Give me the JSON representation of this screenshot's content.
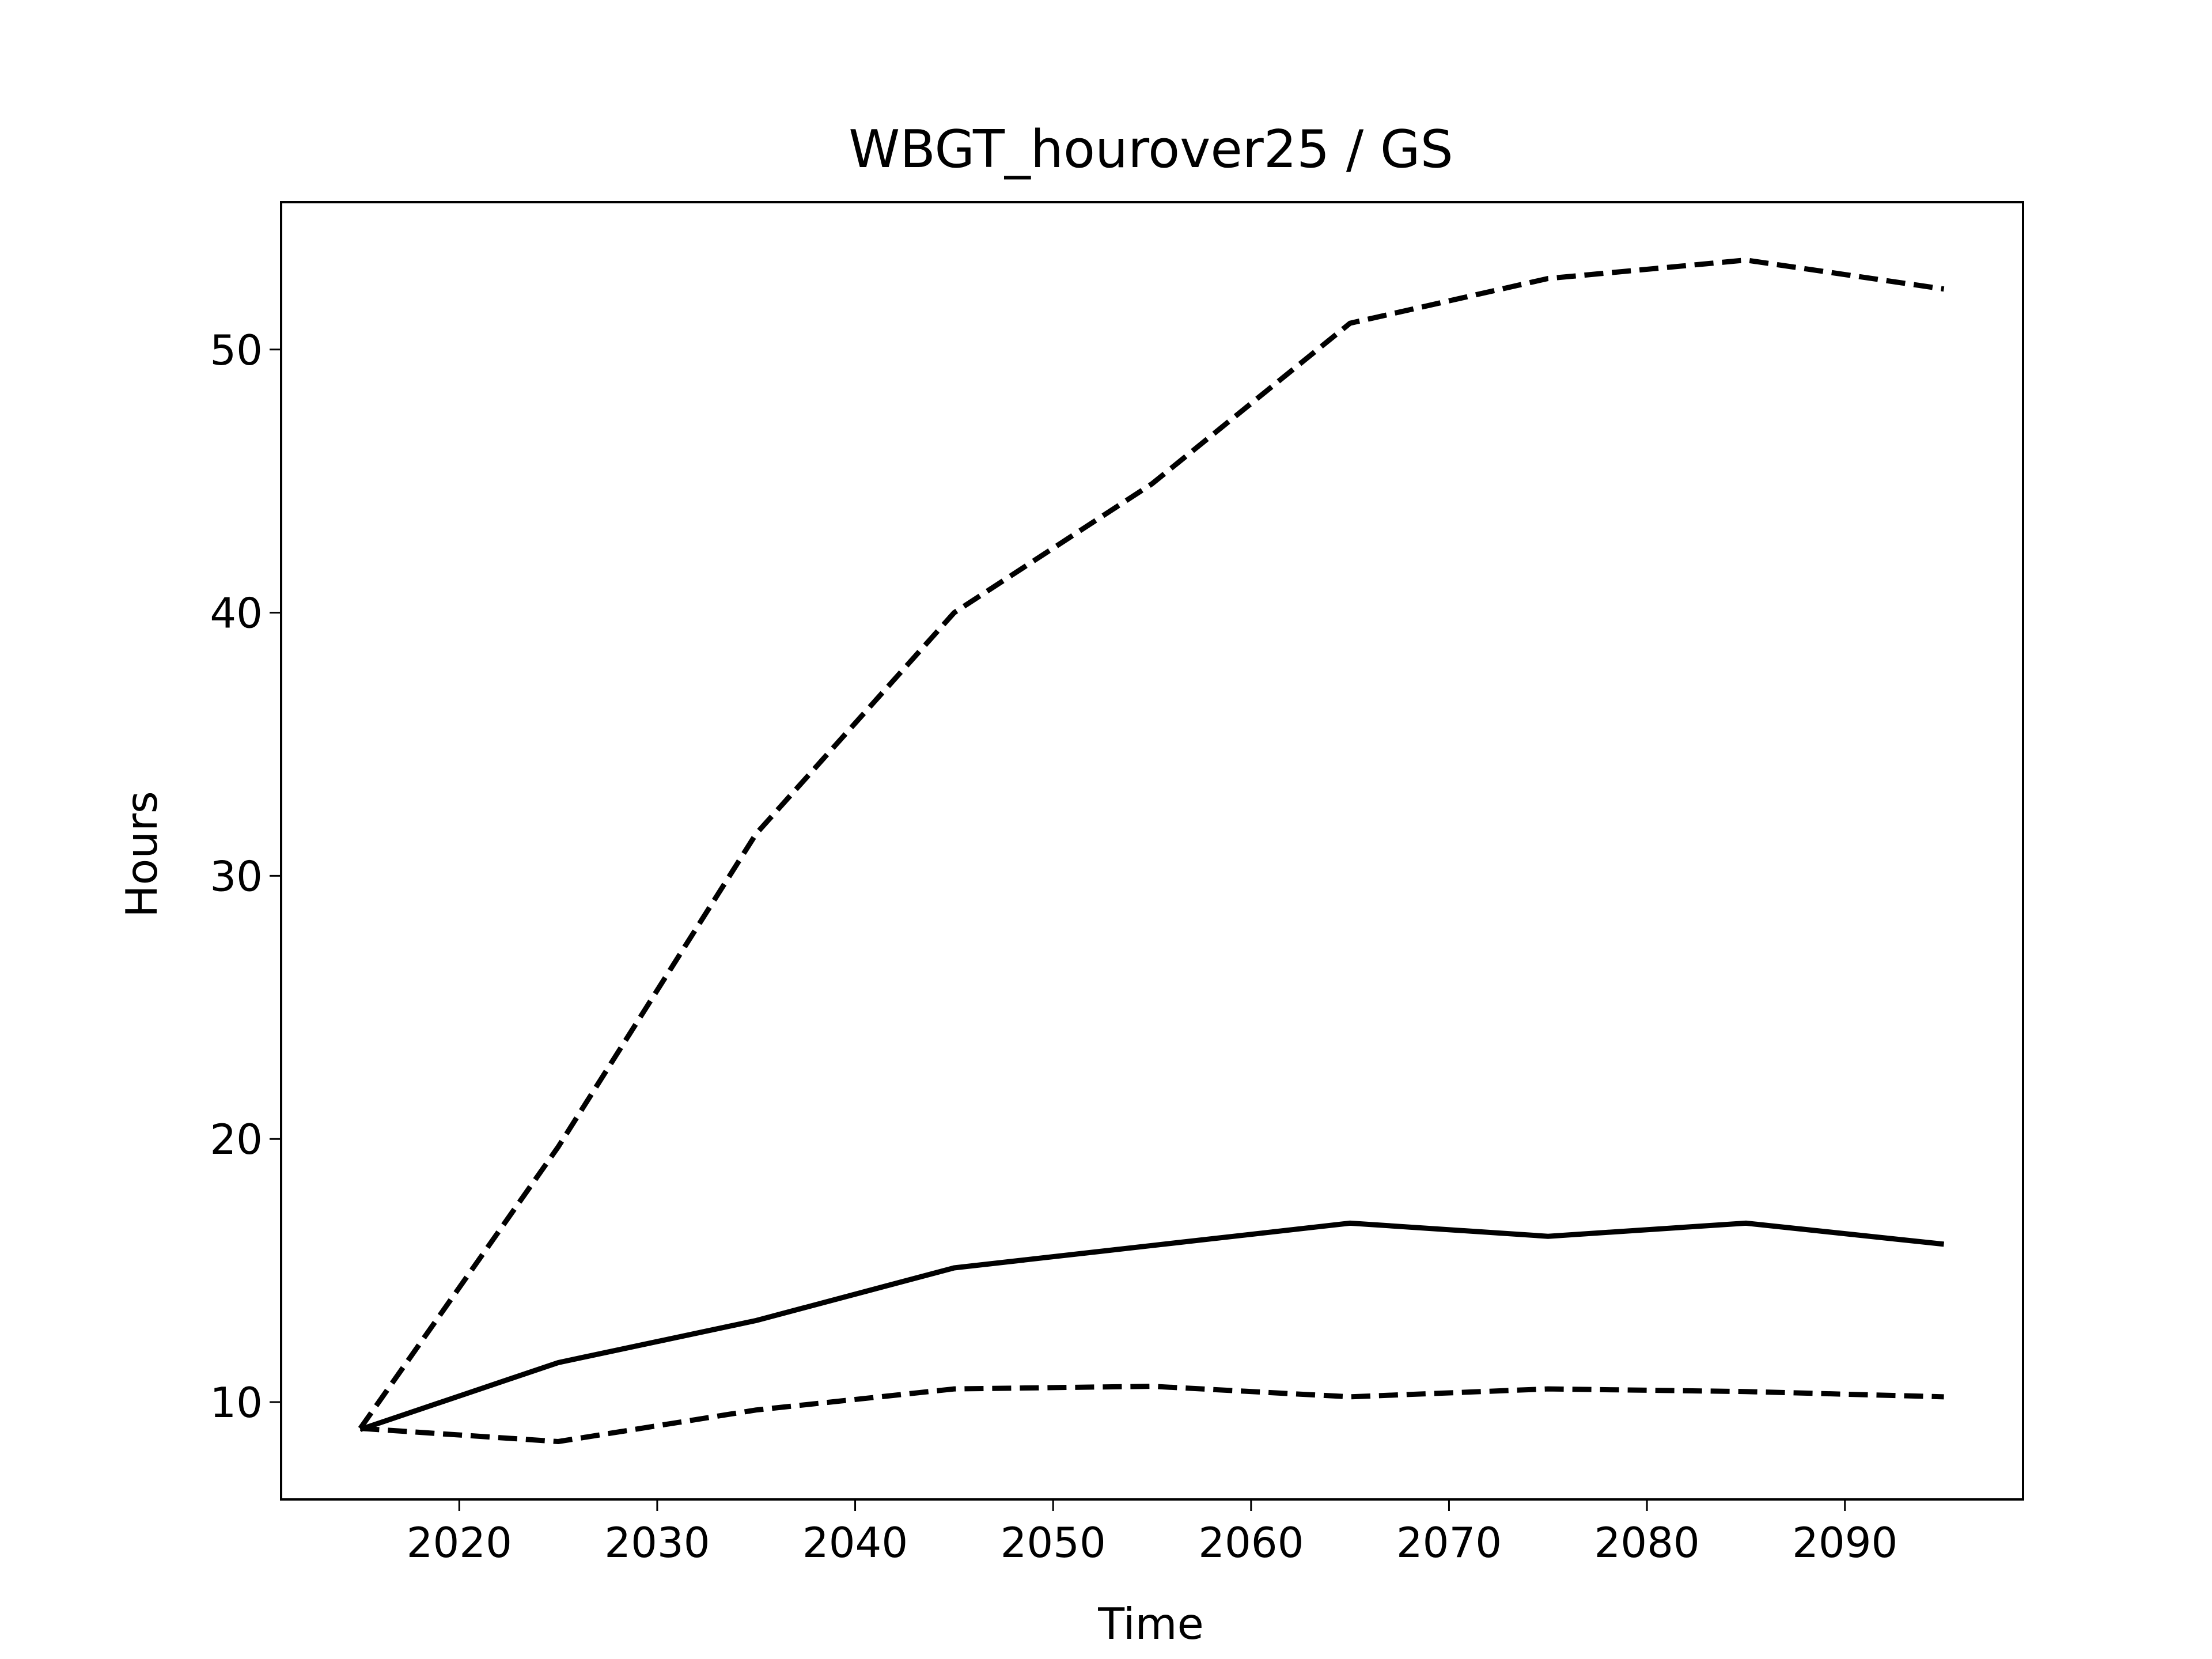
{
  "chart_data": {
    "type": "line",
    "title": "WBGT_hourover25 / GS",
    "x_label": "Time",
    "y_label": "Hours",
    "x": [
      2015,
      2025,
      2035,
      2045,
      2055,
      2065,
      2075,
      2085,
      2095
    ],
    "series": [
      {
        "color": "#000000",
        "dashed": false,
        "values": [
          8.96,
          11.5,
          13.1,
          15.1,
          15.95,
          16.8,
          16.3,
          16.8,
          16.0
        ]
      },
      {
        "color": "#000000",
        "dashed": true,
        "values": [
          9.0,
          19.7,
          31.6,
          40.0,
          44.9,
          51.0,
          52.7,
          53.4,
          52.3
        ]
      },
      {
        "color": "#000000",
        "dashed": true,
        "values": [
          9.0,
          8.5,
          9.7,
          10.5,
          10.6,
          10.2,
          10.5,
          10.4,
          10.2
        ]
      }
    ],
    "xlim": [
      2011,
      2099
    ],
    "ylim": [
      6.3,
      55.6
    ],
    "xticks": [
      2020,
      2030,
      2040,
      2050,
      2060,
      2070,
      2080,
      2090
    ],
    "yticks": [
      10,
      20,
      30,
      40,
      50
    ],
    "grid": false
  }
}
